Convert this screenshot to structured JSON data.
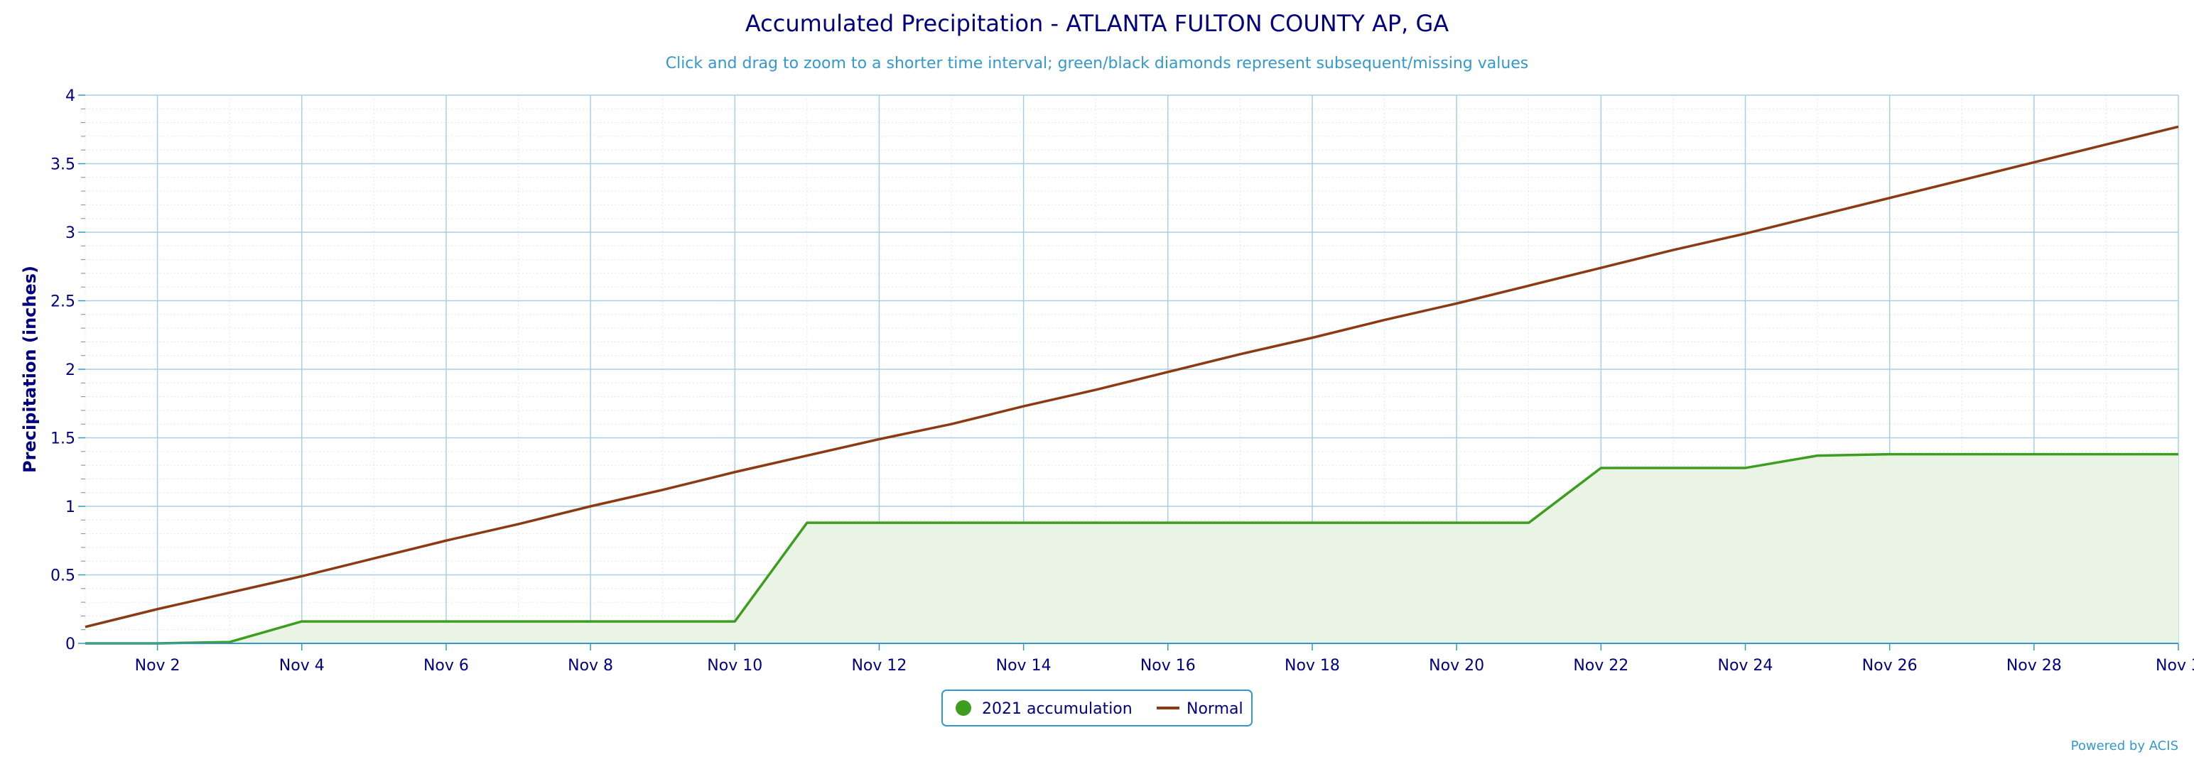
{
  "chart_data": {
    "type": "line",
    "title": "Accumulated Precipitation - ATLANTA FULTON COUNTY AP, GA",
    "subtitle": "Click and drag to zoom to a shorter time interval; green/black diamonds represent subsequent/missing values",
    "xlabel": "",
    "ylabel": "Precipitation (inches)",
    "ylim": [
      0,
      4
    ],
    "xlim": [
      1,
      30
    ],
    "grid": true,
    "legend_position": "bottom-center",
    "y_ticks": [
      "0",
      "0.5",
      "1",
      "1.5",
      "2",
      "2.5",
      "3",
      "3.5",
      "4"
    ],
    "x_ticks": [
      "Nov 2",
      "Nov 4",
      "Nov 6",
      "Nov 8",
      "Nov 10",
      "Nov 12",
      "Nov 14",
      "Nov 16",
      "Nov 18",
      "Nov 20",
      "Nov 22",
      "Nov 24",
      "Nov 26",
      "Nov 28",
      "Nov 3"
    ],
    "x": [
      1,
      2,
      3,
      4,
      5,
      6,
      7,
      8,
      9,
      10,
      11,
      12,
      13,
      14,
      15,
      16,
      17,
      18,
      19,
      20,
      21,
      22,
      23,
      24,
      25,
      26,
      27,
      28,
      29,
      30
    ],
    "series": [
      {
        "name": "2021 accumulation",
        "color": "#3d9d1f",
        "fill": "#eaf4e4",
        "values": [
          0.0,
          0.0,
          0.01,
          0.16,
          0.16,
          0.16,
          0.16,
          0.16,
          0.16,
          0.16,
          0.88,
          0.88,
          0.88,
          0.88,
          0.88,
          0.88,
          0.88,
          0.88,
          0.88,
          0.88,
          0.88,
          1.28,
          1.28,
          1.28,
          1.37,
          1.38,
          1.38,
          1.38,
          1.38,
          1.38
        ]
      },
      {
        "name": "Normal",
        "color": "#8b3a12",
        "values": [
          0.12,
          0.25,
          0.37,
          0.49,
          0.62,
          0.75,
          0.87,
          1.0,
          1.12,
          1.25,
          1.37,
          1.49,
          1.6,
          1.73,
          1.85,
          1.98,
          2.11,
          2.23,
          2.36,
          2.48,
          2.61,
          2.74,
          2.87,
          2.99,
          3.12,
          3.25,
          3.38,
          3.51,
          3.64,
          3.77
        ]
      }
    ]
  },
  "footer": {
    "credit": "Powered by ACIS"
  },
  "colors": {
    "grid": "#a8cfe2",
    "axis": "#3399cc",
    "text": "#000080"
  }
}
